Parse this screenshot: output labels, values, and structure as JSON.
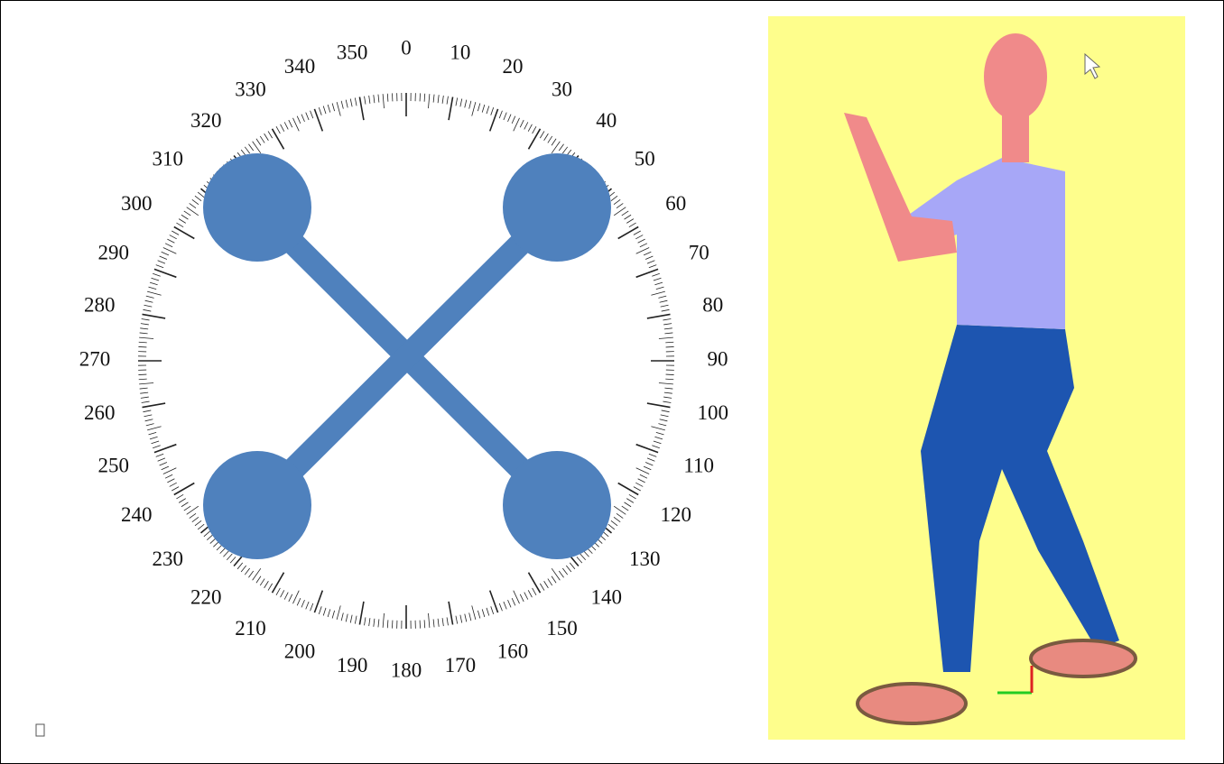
{
  "dial": {
    "labels": [
      0,
      10,
      20,
      30,
      40,
      50,
      60,
      70,
      80,
      90,
      100,
      110,
      120,
      130,
      140,
      150,
      160,
      170,
      180,
      190,
      200,
      210,
      220,
      230,
      240,
      250,
      260,
      270,
      280,
      290,
      300,
      310,
      320,
      330,
      340,
      350
    ]
  }
}
